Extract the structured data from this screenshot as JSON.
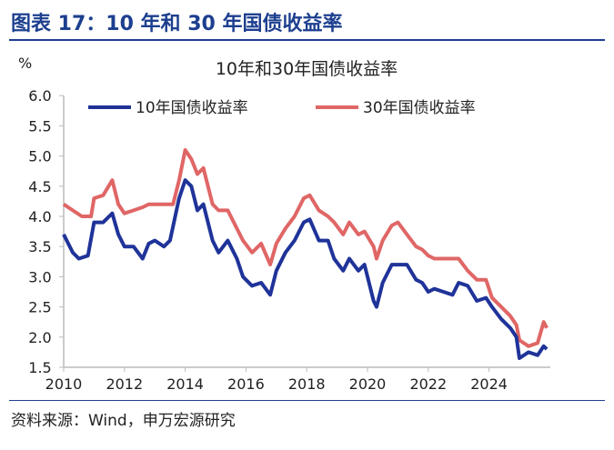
{
  "header": {
    "title": "图表 17：10 年和 30 年国债收益率"
  },
  "footer": {
    "source": "资料来源：Wind，申万宏源研究"
  },
  "chart_data": {
    "type": "line",
    "title": "10年和30年国债收益率",
    "ylabel": "%",
    "xlabel": "",
    "xlim": [
      2010,
      2026
    ],
    "ylim": [
      1.5,
      6.0
    ],
    "xticks": [
      "2010",
      "2012",
      "2014",
      "2016",
      "2018",
      "2020",
      "2022",
      "2024"
    ],
    "yticks": [
      "1.5",
      "2.0",
      "2.5",
      "3.0",
      "3.5",
      "4.0",
      "4.5",
      "5.0",
      "5.5",
      "6.0"
    ],
    "legend_position": "top",
    "grid": false,
    "series": [
      {
        "name": "10年国债收益率",
        "color": "#1f3399",
        "x": [
          2010.0,
          2010.3,
          2010.5,
          2010.8,
          2011.0,
          2011.3,
          2011.6,
          2011.8,
          2012.0,
          2012.3,
          2012.6,
          2012.8,
          2013.0,
          2013.3,
          2013.5,
          2013.8,
          2014.0,
          2014.2,
          2014.4,
          2014.6,
          2014.9,
          2015.1,
          2015.4,
          2015.7,
          2015.9,
          2016.2,
          2016.5,
          2016.8,
          2017.0,
          2017.3,
          2017.6,
          2017.9,
          2018.1,
          2018.4,
          2018.7,
          2018.9,
          2019.2,
          2019.4,
          2019.7,
          2019.9,
          2020.2,
          2020.3,
          2020.5,
          2020.8,
          2021.0,
          2021.3,
          2021.6,
          2021.8,
          2022.0,
          2022.2,
          2022.5,
          2022.8,
          2023.0,
          2023.3,
          2023.6,
          2023.9,
          2024.1,
          2024.4,
          2024.7,
          2024.9,
          2025.0,
          2025.3,
          2025.6,
          2025.8,
          2025.9
        ],
        "values": [
          3.7,
          3.4,
          3.3,
          3.35,
          3.9,
          3.9,
          4.05,
          3.7,
          3.5,
          3.5,
          3.3,
          3.55,
          3.6,
          3.5,
          3.6,
          4.3,
          4.6,
          4.5,
          4.1,
          4.2,
          3.6,
          3.4,
          3.6,
          3.3,
          3.0,
          2.85,
          2.9,
          2.7,
          3.1,
          3.4,
          3.6,
          3.9,
          3.95,
          3.6,
          3.6,
          3.3,
          3.1,
          3.3,
          3.1,
          3.2,
          2.6,
          2.5,
          2.9,
          3.2,
          3.2,
          3.2,
          2.95,
          2.9,
          2.75,
          2.8,
          2.75,
          2.7,
          2.9,
          2.85,
          2.6,
          2.65,
          2.5,
          2.3,
          2.15,
          2.0,
          1.65,
          1.75,
          1.7,
          1.85,
          1.8
        ]
      },
      {
        "name": "30年国债收益率",
        "color": "#e06666",
        "x": [
          2010.0,
          2010.3,
          2010.6,
          2010.9,
          2011.0,
          2011.3,
          2011.6,
          2011.8,
          2012.0,
          2012.3,
          2012.6,
          2012.8,
          2013.3,
          2013.6,
          2013.8,
          2014.0,
          2014.2,
          2014.4,
          2014.6,
          2014.9,
          2015.1,
          2015.4,
          2015.7,
          2015.9,
          2016.2,
          2016.5,
          2016.8,
          2017.0,
          2017.3,
          2017.6,
          2017.9,
          2018.1,
          2018.4,
          2018.7,
          2018.9,
          2019.2,
          2019.4,
          2019.7,
          2019.9,
          2020.2,
          2020.3,
          2020.5,
          2020.8,
          2021.0,
          2021.3,
          2021.6,
          2021.8,
          2022.0,
          2022.2,
          2022.5,
          2022.8,
          2023.0,
          2023.3,
          2023.6,
          2023.9,
          2024.1,
          2024.4,
          2024.7,
          2024.9,
          2025.0,
          2025.3,
          2025.6,
          2025.8,
          2025.9
        ],
        "values": [
          4.2,
          4.1,
          4.0,
          4.0,
          4.3,
          4.35,
          4.6,
          4.2,
          4.05,
          4.1,
          4.15,
          4.2,
          4.2,
          4.2,
          4.6,
          5.1,
          4.95,
          4.7,
          4.8,
          4.2,
          4.1,
          4.1,
          3.8,
          3.6,
          3.4,
          3.55,
          3.2,
          3.55,
          3.8,
          4.0,
          4.3,
          4.35,
          4.1,
          4.0,
          3.9,
          3.7,
          3.9,
          3.7,
          3.75,
          3.5,
          3.3,
          3.6,
          3.85,
          3.9,
          3.7,
          3.5,
          3.45,
          3.35,
          3.3,
          3.3,
          3.3,
          3.3,
          3.1,
          2.95,
          2.95,
          2.65,
          2.5,
          2.35,
          2.2,
          1.95,
          1.85,
          1.9,
          2.25,
          2.15
        ]
      }
    ]
  }
}
